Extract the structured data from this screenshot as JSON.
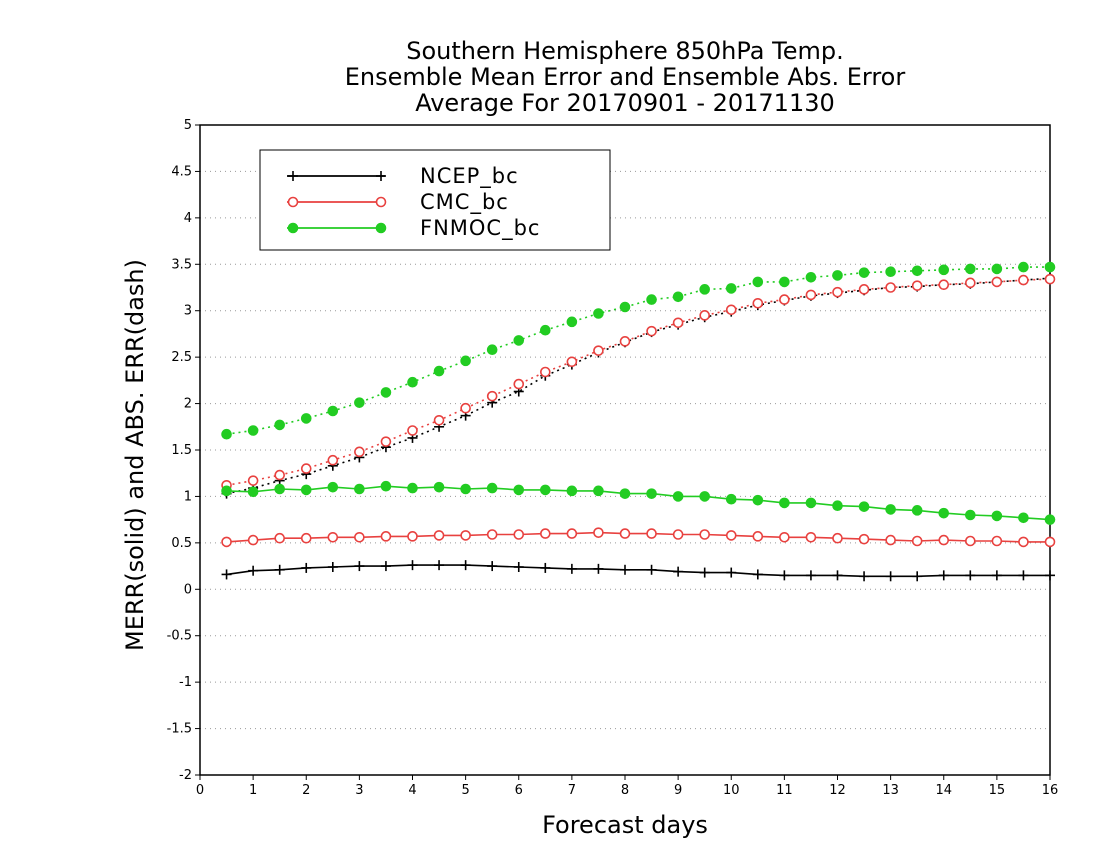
{
  "chart_data": {
    "type": "line",
    "title": [
      "Southern Hemisphere 850hPa Temp.",
      "Ensemble Mean Error and Ensemble Abs. Error",
      "Average For 20170901 - 20171130"
    ],
    "xlabel": "Forecast days",
    "ylabel": "MERR(solid) and ABS. ERR(dash)",
    "xlim": [
      0,
      16
    ],
    "ylim": [
      -2,
      5
    ],
    "xticks": [
      "0",
      "1",
      "2",
      "3",
      "4",
      "5",
      "6",
      "7",
      "8",
      "9",
      "10",
      "11",
      "12",
      "13",
      "14",
      "15",
      "16"
    ],
    "yticks": [
      "-2",
      "-1.5",
      "-1",
      "-0.5",
      "0",
      "0.5",
      "1",
      "1.5",
      "2",
      "2.5",
      "3",
      "3.5",
      "4",
      "4.5",
      "5"
    ],
    "grid": "horizontal dotted",
    "legend_position": "top-left",
    "x": [
      0.5,
      1,
      1.5,
      2,
      2.5,
      3,
      3.5,
      4,
      4.5,
      5,
      5.5,
      6,
      6.5,
      7,
      7.5,
      8,
      8.5,
      9,
      9.5,
      10,
      10.5,
      11,
      11.5,
      12,
      12.5,
      13,
      13.5,
      14,
      14.5,
      15,
      15.5,
      16
    ],
    "series": [
      {
        "name": "NCEP_bc",
        "color": "#000000",
        "marker": "plus",
        "merr": [
          0.16,
          0.2,
          0.21,
          0.23,
          0.24,
          0.25,
          0.25,
          0.26,
          0.26,
          0.26,
          0.25,
          0.24,
          0.23,
          0.22,
          0.22,
          0.21,
          0.21,
          0.19,
          0.18,
          0.18,
          0.16,
          0.15,
          0.15,
          0.15,
          0.14,
          0.14,
          0.14,
          0.15,
          0.15,
          0.15,
          0.15,
          0.15
        ],
        "abserr": [
          1.03,
          1.09,
          1.17,
          1.24,
          1.33,
          1.42,
          1.53,
          1.63,
          1.75,
          1.87,
          2.01,
          2.13,
          2.3,
          2.42,
          2.55,
          2.66,
          2.77,
          2.85,
          2.93,
          2.99,
          3.06,
          3.11,
          3.16,
          3.19,
          3.22,
          3.25,
          3.26,
          3.28,
          3.29,
          3.31,
          3.33,
          3.35
        ]
      },
      {
        "name": "CMC_bc",
        "color": "#e8413f",
        "marker": "open-circle",
        "merr": [
          0.51,
          0.53,
          0.55,
          0.55,
          0.56,
          0.56,
          0.57,
          0.57,
          0.58,
          0.58,
          0.59,
          0.59,
          0.6,
          0.6,
          0.61,
          0.6,
          0.6,
          0.59,
          0.59,
          0.58,
          0.57,
          0.56,
          0.56,
          0.55,
          0.54,
          0.53,
          0.52,
          0.53,
          0.52,
          0.52,
          0.51,
          0.51
        ],
        "abserr": [
          1.12,
          1.17,
          1.23,
          1.3,
          1.39,
          1.48,
          1.59,
          1.71,
          1.82,
          1.95,
          2.08,
          2.21,
          2.34,
          2.45,
          2.57,
          2.67,
          2.78,
          2.87,
          2.95,
          3.01,
          3.08,
          3.12,
          3.17,
          3.2,
          3.23,
          3.25,
          3.27,
          3.28,
          3.3,
          3.31,
          3.33,
          3.34
        ]
      },
      {
        "name": "FNMOC_bc",
        "color": "#22cc22",
        "marker": "filled-circle",
        "merr": [
          1.06,
          1.05,
          1.08,
          1.07,
          1.1,
          1.08,
          1.11,
          1.09,
          1.1,
          1.08,
          1.09,
          1.07,
          1.07,
          1.06,
          1.06,
          1.03,
          1.03,
          1.0,
          1.0,
          0.97,
          0.96,
          0.93,
          0.93,
          0.9,
          0.89,
          0.86,
          0.85,
          0.82,
          0.8,
          0.79,
          0.77,
          0.75
        ],
        "abserr": [
          1.67,
          1.71,
          1.77,
          1.84,
          1.92,
          2.01,
          2.12,
          2.23,
          2.35,
          2.46,
          2.58,
          2.68,
          2.79,
          2.88,
          2.97,
          3.04,
          3.12,
          3.15,
          3.23,
          3.24,
          3.31,
          3.31,
          3.36,
          3.38,
          3.41,
          3.42,
          3.43,
          3.44,
          3.45,
          3.45,
          3.47,
          3.47
        ]
      }
    ]
  }
}
